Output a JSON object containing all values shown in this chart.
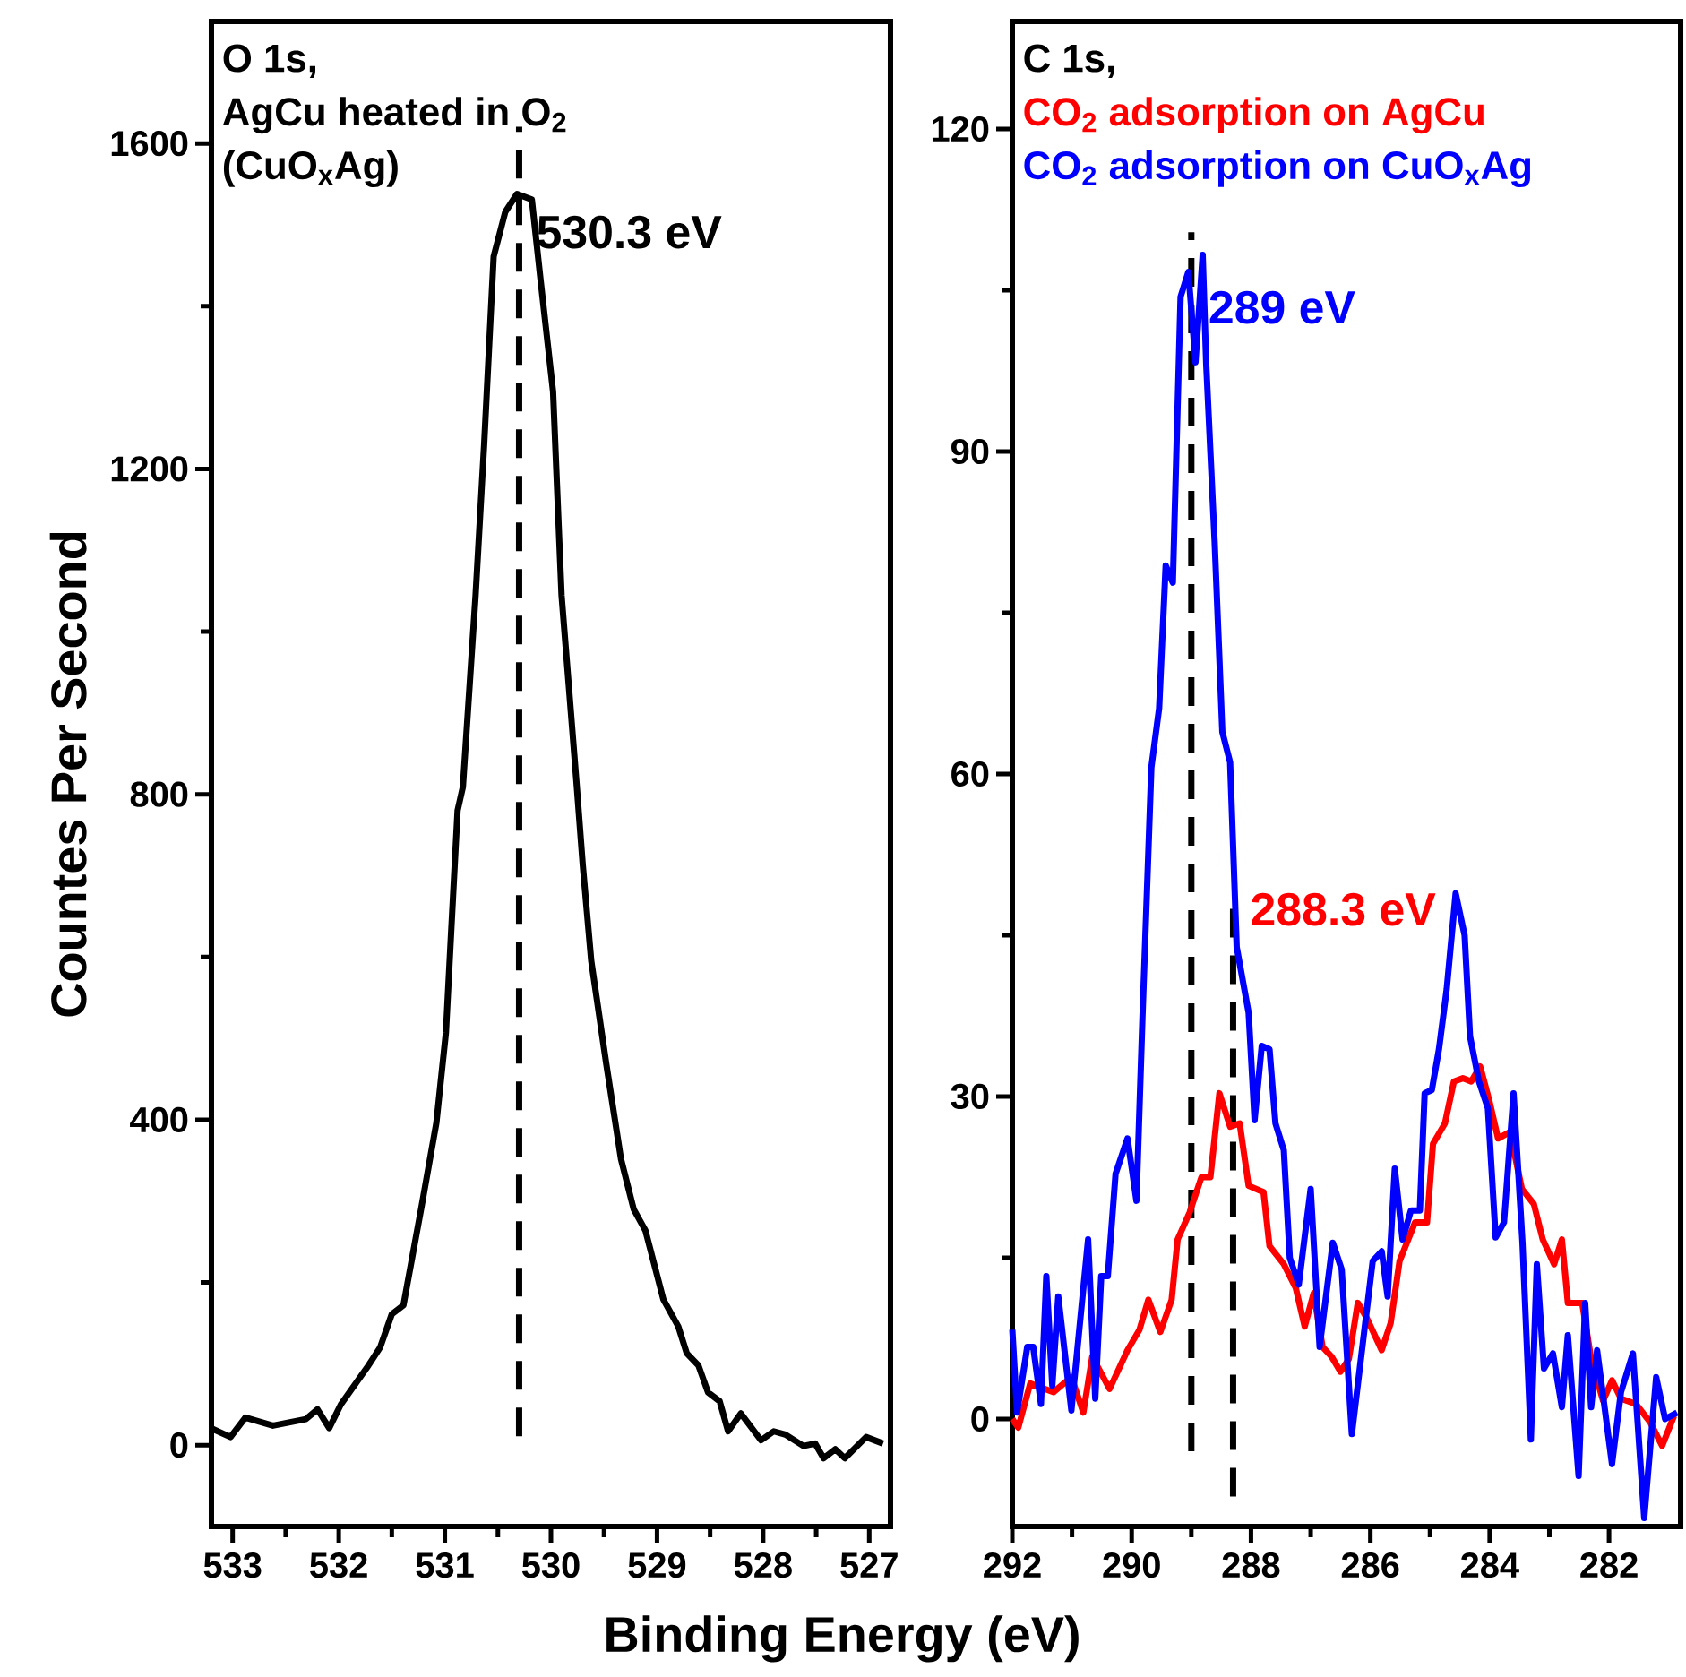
{
  "chart_data": [
    {
      "type": "line",
      "title": "O 1s,",
      "annotations": [
        "AgCu heated in O$_{2}$",
        "(CuO$_{x}$Ag)"
      ],
      "xlabel": "Binding Energy (eV)",
      "ylabel": "Countes Per Second",
      "x": [
        533.19,
        533.02,
        532.88,
        532.62,
        532.31,
        532.2,
        532.09,
        531.98,
        531.72,
        531.61,
        531.5,
        531.39,
        531.22,
        531.08,
        530.99,
        530.94,
        530.88,
        530.83,
        530.71,
        530.63,
        530.54,
        530.43,
        530.32,
        530.18,
        530.1,
        529.98,
        529.9,
        529.76,
        529.7,
        529.62,
        529.48,
        529.34,
        529.22,
        529.11,
        528.94,
        528.8,
        528.72,
        528.61,
        528.52,
        528.41,
        528.33,
        528.21,
        528.02,
        527.9,
        527.79,
        527.62,
        527.51,
        527.43,
        527.32,
        527.23,
        527.03,
        526.87
      ],
      "series": [
        {
          "color": "#000000",
          "values": [
            20,
            10,
            34,
            24,
            32,
            44,
            21,
            50,
            98,
            120,
            161,
            172,
            293,
            396,
            507,
            632,
            780,
            809,
            1045,
            1229,
            1461,
            1516,
            1538,
            1531,
            1435,
            1295,
            1045,
            816,
            713,
            595,
            470,
            352,
            290,
            264,
            179,
            146,
            113,
            98,
            65,
            54,
            17,
            39,
            6,
            17,
            13,
            -1,
            2,
            -16,
            -5,
            -16,
            10,
            2
          ]
        }
      ],
      "xlim": [
        533.2,
        526.8
      ],
      "ylim": [
        -100,
        1750
      ],
      "xticks": [
        533,
        532,
        531,
        530,
        529,
        528,
        527
      ],
      "yticks": [
        0,
        400,
        800,
        1200,
        1600
      ],
      "ref_lines": [
        {
          "axis": "x",
          "value": 530.3,
          "label": "530.3 eV",
          "color": "#000000",
          "line_style": "dashed"
        }
      ]
    },
    {
      "type": "line",
      "title": "C 1s,",
      "legend": "top left",
      "series": [
        {
          "name": "CO$_{2}$ adsorption on AgCu",
          "color": "#ff0000",
          "x": [
            292.0,
            291.9,
            291.7,
            291.31,
            291.01,
            290.81,
            290.66,
            290.37,
            290.07,
            289.87,
            289.72,
            289.52,
            289.33,
            289.23,
            289.03,
            288.83,
            288.68,
            288.53,
            288.35,
            288.19,
            288.04,
            287.79,
            287.69,
            287.45,
            287.25,
            287.1,
            286.95,
            286.8,
            286.65,
            286.5,
            286.36,
            286.21,
            286.06,
            285.81,
            285.66,
            285.51,
            285.25,
            285.05,
            284.95,
            284.75,
            284.6,
            284.45,
            284.31,
            284.16,
            284.01,
            283.86,
            283.66,
            283.46,
            283.26,
            283.11,
            282.92,
            282.79,
            282.69,
            282.45,
            282.3,
            282.1,
            281.95,
            281.8,
            281.55,
            281.31,
            281.11,
            280.91
          ],
          "values": [
            0,
            -0.8,
            3.3,
            2.5,
            3.9,
            0.6,
            5.8,
            2.8,
            6.4,
            8.3,
            11.1,
            8.1,
            11.1,
            16.7,
            19.2,
            22.5,
            22.5,
            30.3,
            27.2,
            27.5,
            21.7,
            21.1,
            16.1,
            14.4,
            12.2,
            8.6,
            11.7,
            6.7,
            5.8,
            4.4,
            5.6,
            10.8,
            9.4,
            6.4,
            8.9,
            14.7,
            18.3,
            18.3,
            25.6,
            27.5,
            31.4,
            31.7,
            31.4,
            32.8,
            29.7,
            26.1,
            26.7,
            21.4,
            20,
            16.7,
            14.4,
            16.7,
            10.8,
            10.8,
            5.6,
            1.7,
            3.6,
            1.9,
            1.4,
            -0.3,
            -2.5,
            0.3
          ]
        },
        {
          "name": "CO$_{2}$ adsorption on CuO$_{x}$Ag",
          "color": "#0000ff",
          "x": [
            292.0,
            291.92,
            291.75,
            291.65,
            291.52,
            291.43,
            291.33,
            291.23,
            291.01,
            290.73,
            290.61,
            290.51,
            290.4,
            290.27,
            290.07,
            289.92,
            289.82,
            289.67,
            289.54,
            289.43,
            289.31,
            289.18,
            289.05,
            288.93,
            288.81,
            288.75,
            288.61,
            288.48,
            288.35,
            288.24,
            288.04,
            287.94,
            287.82,
            287.69,
            287.59,
            287.45,
            287.35,
            287.2,
            287.0,
            286.85,
            286.63,
            286.48,
            286.31,
            285.96,
            285.81,
            285.71,
            285.59,
            285.46,
            285.32,
            285.17,
            285.09,
            284.97,
            284.85,
            284.72,
            284.57,
            284.42,
            284.33,
            284.18,
            284.03,
            283.9,
            283.76,
            283.6,
            283.45,
            283.31,
            283.21,
            283.09,
            282.94,
            282.79,
            282.69,
            282.51,
            282.4,
            282.3,
            282.2,
            281.95,
            281.8,
            281.6,
            281.41,
            281.21,
            281.06,
            280.86
          ],
          "values": [
            8.3,
            0.6,
            6.7,
            6.7,
            1.4,
            13.3,
            3.1,
            11.4,
            0.8,
            16.7,
            1.9,
            13.3,
            13.3,
            22.8,
            26.1,
            20.3,
            37.2,
            60.6,
            66.1,
            79.4,
            77.8,
            104.4,
            106.7,
            98.3,
            108.3,
            98.1,
            81.7,
            63.9,
            61.1,
            43.9,
            37.8,
            27.8,
            34.7,
            34.4,
            27.5,
            25,
            15,
            12.5,
            21.4,
            6.7,
            16.4,
            13.9,
            -1.4,
            14.7,
            15.6,
            11.4,
            23.3,
            16.7,
            19.4,
            19.4,
            30.3,
            30.6,
            34.4,
            40,
            48.9,
            45,
            35.6,
            31.4,
            28.9,
            16.9,
            18.3,
            30.3,
            16.4,
            -1.9,
            14.4,
            4.7,
            6.1,
            1.1,
            7.8,
            -5.3,
            10.8,
            1.1,
            6.4,
            -4.2,
            2.5,
            6.1,
            -9.2,
            3.9,
            0,
            0.6
          ]
        }
      ],
      "xlim": [
        292,
        280.8
      ],
      "ylim": [
        -10,
        130
      ],
      "xticks": [
        292,
        290,
        288,
        286,
        284,
        282
      ],
      "yticks": [
        0,
        30,
        60,
        90,
        120
      ],
      "ref_lines": [
        {
          "axis": "x",
          "value": 288.3,
          "label": "288.3 eV",
          "color": "#000000",
          "line_style": "dashed"
        },
        {
          "axis": "x",
          "value": 289,
          "label": "289 eV",
          "color": "#000000",
          "line_style": "dashed"
        }
      ]
    }
  ]
}
